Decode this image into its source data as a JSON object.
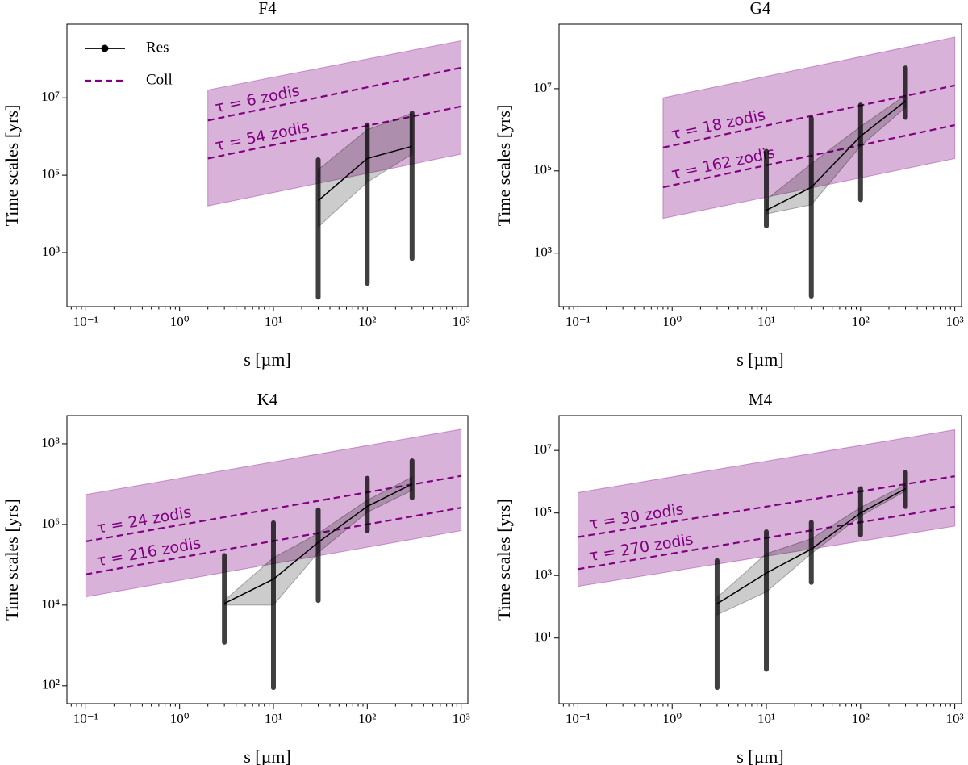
{
  "chart_data": [
    {
      "type": "line",
      "title": "F4",
      "xlabel": "s [µm]",
      "ylabel": "Time scales [yrs]",
      "xscale": "log",
      "yscale": "log",
      "xlim": [
        0.063,
        1180
      ],
      "ylim": [
        40,
        800000000
      ],
      "xticks": [
        {
          "value": 0.1,
          "label": "10⁻¹"
        },
        {
          "value": 1,
          "label": "10⁰"
        },
        {
          "value": 10,
          "label": "10¹"
        },
        {
          "value": 100,
          "label": "10²"
        },
        {
          "value": 1000,
          "label": "10³"
        }
      ],
      "yticks": [
        {
          "value": 1000,
          "label": "10³"
        },
        {
          "value": 100000,
          "label": "10⁵"
        },
        {
          "value": 10000000,
          "label": "10⁷"
        }
      ],
      "legend": "upper left",
      "series": [
        {
          "name": "Res",
          "color": "#000000",
          "x": [
            30,
            100,
            300
          ],
          "values": [
            22000,
            270000,
            560000
          ],
          "lower": [
            4600,
            66000,
            350000
          ],
          "upper": [
            140000,
            1500000,
            4000000
          ],
          "points_min": [
            70,
            160,
            700
          ],
          "points_max": [
            250000,
            2000000,
            4000000
          ]
        },
        {
          "name": "Coll",
          "color": "#800080",
          "x": [
            2,
            1000
          ],
          "lower": [
            16000,
            350000
          ],
          "upper": [
            16000000,
            300000000
          ],
          "lines": [
            {
              "label": "τ = 6 zodis",
              "values": [
                2600000,
                60000000
              ]
            },
            {
              "label": "τ = 54 zodis",
              "values": [
                270000,
                6000000
              ]
            }
          ]
        }
      ]
    },
    {
      "type": "line",
      "title": "G4",
      "xlabel": "s [µm]",
      "ylabel": "Time scales [yrs]",
      "xscale": "log",
      "yscale": "log",
      "xlim": [
        0.063,
        1180
      ],
      "ylim": [
        50,
        370000000
      ],
      "xticks": [
        {
          "value": 0.1,
          "label": "10⁻¹"
        },
        {
          "value": 1,
          "label": "10⁰"
        },
        {
          "value": 10,
          "label": "10¹"
        },
        {
          "value": 100,
          "label": "10²"
        },
        {
          "value": 1000,
          "label": "10³"
        }
      ],
      "yticks": [
        {
          "value": 1000,
          "label": "10³"
        },
        {
          "value": 100000,
          "label": "10⁵"
        },
        {
          "value": 10000000,
          "label": "10⁷"
        }
      ],
      "series": [
        {
          "color": "#000000",
          "x": [
            10,
            30,
            100,
            300
          ],
          "values": [
            11000,
            40000,
            700000,
            5000000
          ],
          "lower": [
            9000,
            15000,
            400000,
            3500000
          ],
          "upper": [
            20000,
            150000,
            1200000,
            7000000
          ],
          "points_min": [
            4600,
            90,
            20000,
            2000000
          ],
          "points_max": [
            300000,
            1900000,
            4000000,
            32000000
          ]
        },
        {
          "color": "#800080",
          "x": [
            0.8,
            1000
          ],
          "lower": [
            7000,
            200000
          ],
          "upper": [
            6000000,
            180000000
          ],
          "lines": [
            {
              "label": "τ = 18 zodis",
              "values": [
                370000,
                12000000
              ]
            },
            {
              "label": "τ = 162 zodis",
              "values": [
                40000,
                1300000
              ]
            }
          ]
        }
      ]
    },
    {
      "type": "line",
      "title": "K4",
      "xlabel": "s [µm]",
      "ylabel": "Time scales [yrs]",
      "xscale": "log",
      "yscale": "log",
      "xlim": [
        0.063,
        1180
      ],
      "ylim": [
        36,
        500000000
      ],
      "xticks": [
        {
          "value": 0.1,
          "label": "10⁻¹"
        },
        {
          "value": 1,
          "label": "10⁰"
        },
        {
          "value": 10,
          "label": "10¹"
        },
        {
          "value": 100,
          "label": "10²"
        },
        {
          "value": 1000,
          "label": "10³"
        }
      ],
      "yticks": [
        {
          "value": 100,
          "label": "10²"
        },
        {
          "value": 10000,
          "label": "10⁴"
        },
        {
          "value": 1000000,
          "label": "10⁶"
        },
        {
          "value": 100000000,
          "label": "10⁸"
        }
      ],
      "series": [
        {
          "color": "#000000",
          "x": [
            3,
            10,
            30,
            100,
            300
          ],
          "values": [
            11000,
            44000,
            360000,
            2800000,
            10000000
          ],
          "lower": [
            10000,
            10000,
            200000,
            2000000,
            7000000
          ],
          "upper": [
            13000,
            150000,
            600000,
            4000000,
            15000000
          ],
          "points_min": [
            1200,
            90,
            13000,
            700000,
            4600000
          ],
          "points_max": [
            170000,
            1100000,
            2300000,
            14000000,
            38000000
          ]
        },
        {
          "color": "#800080",
          "x": [
            0.1,
            1000
          ],
          "lower": [
            16000,
            700000
          ],
          "upper": [
            5500000,
            230000000
          ],
          "lines": [
            {
              "label": "τ = 24 zodis",
              "values": [
                380000,
                16000000
              ]
            },
            {
              "label": "τ = 216 zodis",
              "values": [
                58000,
                2600000
              ]
            }
          ]
        }
      ]
    },
    {
      "type": "line",
      "title": "M4",
      "xlabel": "s [µm]",
      "ylabel": "Time scales [yrs]",
      "xscale": "log",
      "yscale": "log",
      "xlim": [
        0.063,
        1180
      ],
      "ylim": [
        0.08,
        130000000
      ],
      "xticks": [
        {
          "value": 0.1,
          "label": "10⁻¹"
        },
        {
          "value": 1,
          "label": "10⁰"
        },
        {
          "value": 10,
          "label": "10¹"
        },
        {
          "value": 100,
          "label": "10²"
        },
        {
          "value": 1000,
          "label": "10³"
        }
      ],
      "yticks": [
        {
          "value": 10,
          "label": "10¹"
        },
        {
          "value": 1000,
          "label": "10³"
        },
        {
          "value": 100000,
          "label": "10⁵"
        },
        {
          "value": 10000000,
          "label": "10⁷"
        }
      ],
      "series": [
        {
          "color": "#000000",
          "x": [
            3,
            10,
            30,
            100,
            300
          ],
          "values": [
            125,
            1200,
            7000,
            100000,
            600000
          ],
          "lower": [
            55,
            300,
            5000,
            80000,
            500000
          ],
          "upper": [
            200,
            5000,
            15000,
            150000,
            800000
          ],
          "points_min": [
            0.26,
            1,
            600,
            20000,
            160000
          ],
          "points_max": [
            3000,
            25000,
            50000,
            600000,
            2000000
          ]
        },
        {
          "color": "#800080",
          "x": [
            0.1,
            1000
          ],
          "lower": [
            450,
            38000
          ],
          "upper": [
            450000,
            46000000
          ],
          "lines": [
            {
              "label": "τ = 30 zodis",
              "values": [
                17000,
                1500000
              ]
            },
            {
              "label": "τ = 270 zodis",
              "values": [
                1600,
                160000
              ]
            }
          ]
        }
      ]
    }
  ]
}
